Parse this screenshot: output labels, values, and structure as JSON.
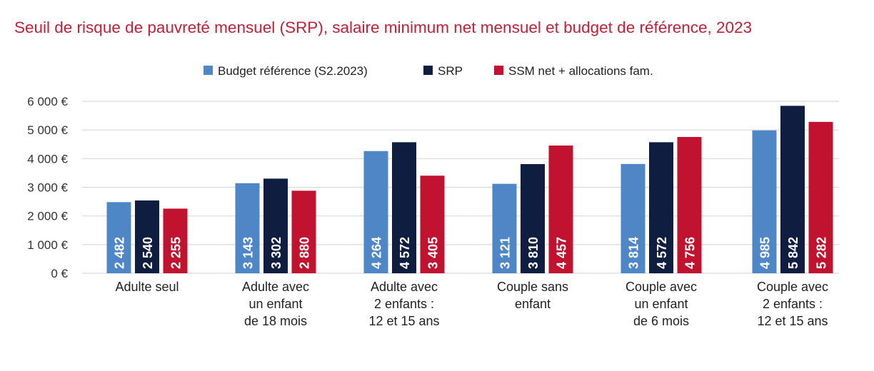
{
  "chart_data": {
    "type": "bar",
    "title": "Seuil de risque de pauvreté mensuel (SRP), salaire minimum net mensuel et budget de référence, 2023",
    "categories": [
      [
        "Adulte seul"
      ],
      [
        "Adulte avec",
        "un enfant",
        "de 18 mois"
      ],
      [
        "Adulte avec",
        "2 enfants :",
        "12 et 15 ans"
      ],
      [
        "Couple sans",
        "enfant"
      ],
      [
        "Couple avec",
        "un enfant",
        "de 6 mois"
      ],
      [
        "Couple avec",
        "2 enfants :",
        "12 et 15 ans"
      ]
    ],
    "series": [
      {
        "name": "Budget référence (S2.2023)",
        "color": "#4f87c6",
        "values": [
          2482,
          3143,
          4264,
          3121,
          3814,
          4985
        ],
        "labels": [
          "2 482",
          "3 143",
          "4 264",
          "3 121",
          "3 814",
          "4 985"
        ]
      },
      {
        "name": "SRP",
        "color": "#0e1d40",
        "values": [
          2540,
          3302,
          4572,
          3810,
          4572,
          5842
        ],
        "labels": [
          "2 540",
          "3 302",
          "4 572",
          "3 810",
          "4 572",
          "5 842"
        ]
      },
      {
        "name": "SSM net + allocations fam.",
        "color": "#c1132f",
        "values": [
          2255,
          2880,
          3405,
          4457,
          4756,
          5282
        ],
        "labels": [
          "2 255",
          "2 880",
          "3 405",
          "4 457",
          "4 756",
          "5 282"
        ]
      }
    ],
    "yticks": [
      "0 €",
      "1 000 €",
      "2 000 €",
      "3 000 €",
      "4 000 €",
      "5 000 €",
      "6 000 €"
    ],
    "ylim": [
      0,
      6000
    ],
    "grid": true,
    "legend": "top-center",
    "xlabel": "",
    "ylabel": ""
  }
}
